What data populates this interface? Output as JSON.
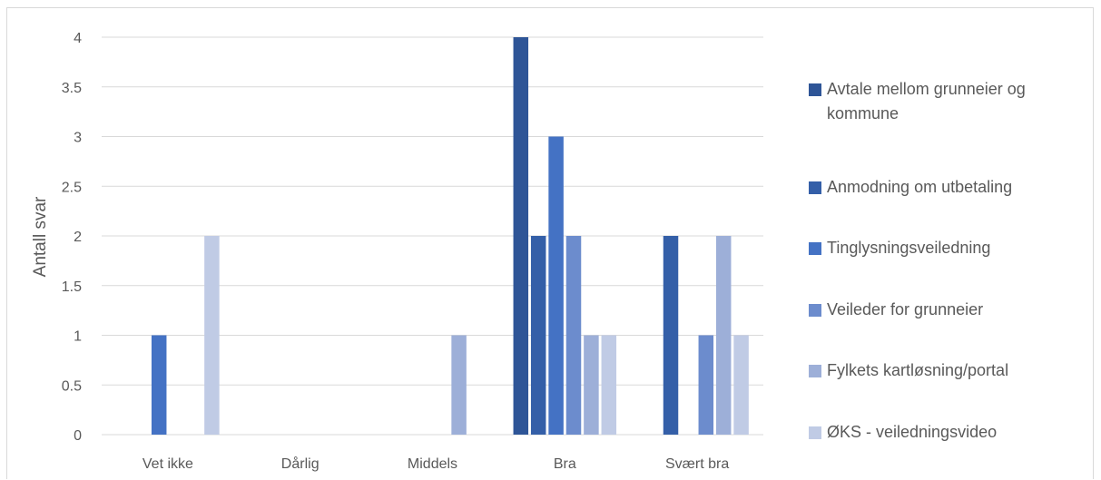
{
  "chart_data": {
    "type": "bar",
    "title": "",
    "xlabel": "",
    "ylabel": "Antall svar",
    "ylim": [
      0,
      4
    ],
    "y_ticks": [
      "0",
      "0.5",
      "1",
      "1.5",
      "2",
      "2.5",
      "3",
      "3.5",
      "4"
    ],
    "grid": "horizontal",
    "legend_position": "right",
    "categories": [
      "Vet ikke",
      "Dårlig",
      "Middels",
      "Bra",
      "Svært bra"
    ],
    "series": [
      {
        "name": "Avtale mellom grunneier og kommune",
        "color": "#2e5597",
        "values": [
          0,
          0,
          0,
          4,
          0
        ]
      },
      {
        "name": "Anmodning om utbetaling",
        "color": "#345fa8",
        "values": [
          0,
          0,
          0,
          2,
          2
        ]
      },
      {
        "name": "Tinglysningsveiledning",
        "color": "#4472c4",
        "values": [
          1,
          0,
          0,
          3,
          0
        ]
      },
      {
        "name": "Veileder for grunneier",
        "color": "#6c8ccd",
        "values": [
          0,
          0,
          0,
          2,
          1
        ]
      },
      {
        "name": "Fylkets kartløsning/portal",
        "color": "#9dafd8",
        "values": [
          0,
          0,
          1,
          1,
          2
        ]
      },
      {
        "name": "ØKS - veiledningsvideo",
        "color": "#c0cbe5",
        "values": [
          2,
          0,
          0,
          1,
          1
        ]
      }
    ]
  }
}
